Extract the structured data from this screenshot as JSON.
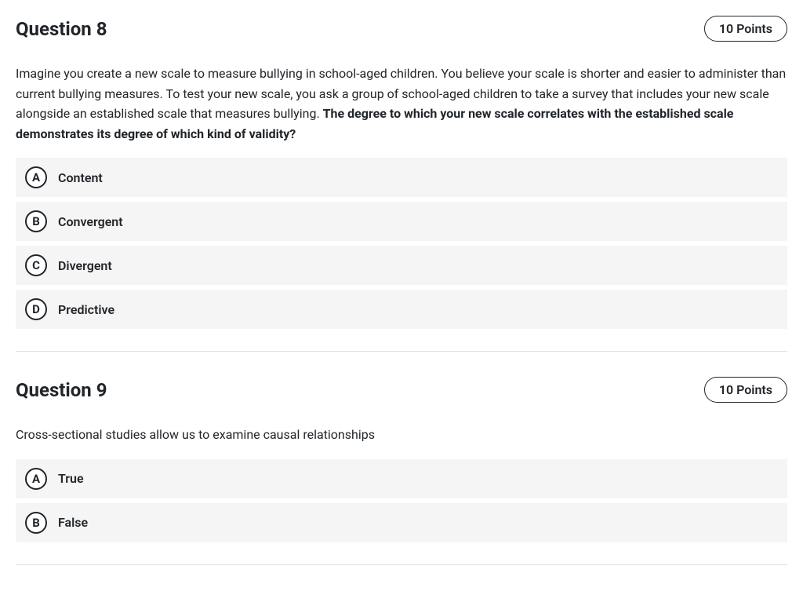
{
  "questions": [
    {
      "title": "Question 8",
      "points": "10 Points",
      "prompt_plain": "Imagine you create a new scale to measure bullying in school-aged children. You believe your scale is shorter and easier to administer than current bullying measures. To test your new scale, you ask a group of school-aged children to take a survey that includes your new scale alongside an established scale that measures bullying. ",
      "prompt_bold": "The degree to which your new scale correlates with the established scale demonstrates its degree of which kind of validity?",
      "options": [
        {
          "letter": "A",
          "text": "Content"
        },
        {
          "letter": "B",
          "text": "Convergent"
        },
        {
          "letter": "C",
          "text": "Divergent"
        },
        {
          "letter": "D",
          "text": "Predictive"
        }
      ]
    },
    {
      "title": "Question 9",
      "points": "10 Points",
      "prompt_plain": "Cross-sectional studies allow us to examine causal relationships",
      "prompt_bold": "",
      "options": [
        {
          "letter": "A",
          "text": "True"
        },
        {
          "letter": "B",
          "text": "False"
        }
      ]
    }
  ],
  "colors": {
    "background": "#ffffff",
    "option_bg": "#f5f5f5",
    "text": "#212529",
    "divider": "#e0e0e0"
  }
}
